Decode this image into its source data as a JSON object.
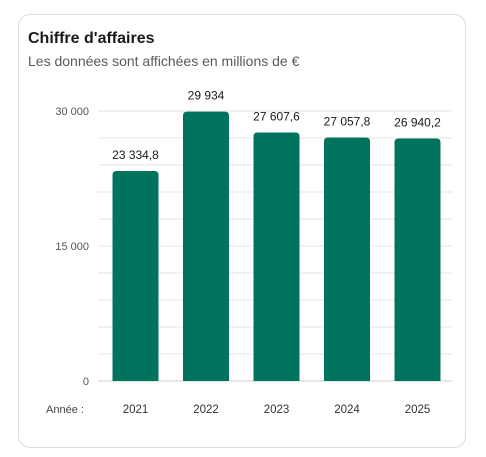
{
  "card": {
    "title": "Chiffre d'affaires",
    "subtitle": "Les données sont affichées en millions de €"
  },
  "chart_data": {
    "type": "bar",
    "title": "Chiffre d'affaires",
    "subtitle": "Les données sont affichées en millions de €",
    "x_axis_prefix": "Année :",
    "categories": [
      "2021",
      "2022",
      "2023",
      "2024",
      "2025"
    ],
    "values": [
      23334.8,
      29934,
      27607.6,
      27057.8,
      26940.2
    ],
    "value_labels": [
      "23 334,8",
      "29 934",
      "27 607,6",
      "27 057,8",
      "26 940,2"
    ],
    "ylim": [
      0,
      30000
    ],
    "y_ticks": [
      0,
      15000,
      30000
    ],
    "y_tick_labels": [
      "0",
      "15 000",
      "30 000"
    ],
    "minor_grid_step": 3000,
    "grid": true,
    "legend": "none",
    "bar_color": "#00735F"
  }
}
